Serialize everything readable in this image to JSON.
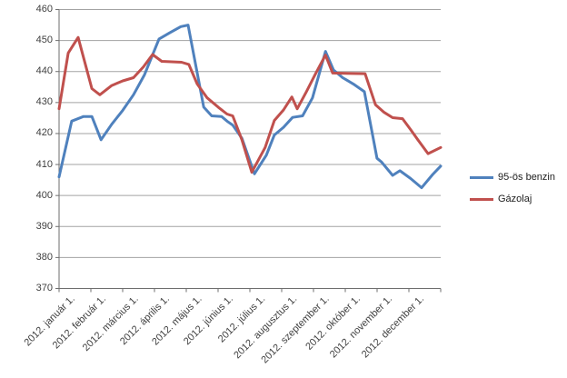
{
  "chart_data": {
    "type": "line",
    "title": "",
    "y_axis": {
      "min": 370,
      "max": 460,
      "step": 10,
      "tick_labels": [
        "370",
        "380",
        "390",
        "400",
        "410",
        "420",
        "430",
        "440",
        "450",
        "460"
      ]
    },
    "x_axis": {
      "tick_labels": [
        "2012. január 1.",
        "2012. február 1.",
        "2012. március 1.",
        "2012. április 1.",
        "2012. május 1.",
        "2012. június 1.",
        "2012. július 1.",
        "2012. augusztus 1.",
        "2012. szeptember 1.",
        "2012. október 1.",
        "2012. november 1.",
        "2012. december 1."
      ]
    },
    "grid": true,
    "legend_position": "right",
    "colors": {
      "gridline": "#a3a3a3",
      "axis": "#6e6e6e",
      "labels": "#404040",
      "background": "#ffffff"
    },
    "series": [
      {
        "name": "95-ös benzin",
        "color": "#4F81BD",
        "points": [
          [
            0.0,
            406
          ],
          [
            0.033,
            424
          ],
          [
            0.064,
            425.5
          ],
          [
            0.086,
            425.5
          ],
          [
            0.11,
            418
          ],
          [
            0.138,
            423
          ],
          [
            0.167,
            427.5
          ],
          [
            0.195,
            432.5
          ],
          [
            0.224,
            439
          ],
          [
            0.262,
            450.5
          ],
          [
            0.29,
            452.5
          ],
          [
            0.319,
            454.5
          ],
          [
            0.338,
            455
          ],
          [
            0.379,
            428.5
          ],
          [
            0.4,
            425.7
          ],
          [
            0.426,
            425.5
          ],
          [
            0.44,
            424
          ],
          [
            0.455,
            422.7
          ],
          [
            0.479,
            418.5
          ],
          [
            0.512,
            407
          ],
          [
            0.543,
            413
          ],
          [
            0.564,
            419.5
          ],
          [
            0.588,
            422
          ],
          [
            0.612,
            425.2
          ],
          [
            0.638,
            425.7
          ],
          [
            0.664,
            431.5
          ],
          [
            0.698,
            446.5
          ],
          [
            0.719,
            440.5
          ],
          [
            0.743,
            438
          ],
          [
            0.771,
            436
          ],
          [
            0.8,
            433.5
          ],
          [
            0.833,
            412
          ],
          [
            0.845,
            410.8
          ],
          [
            0.874,
            406.5
          ],
          [
            0.893,
            408
          ],
          [
            0.921,
            405.5
          ],
          [
            0.95,
            402.5
          ],
          [
            0.979,
            406.8
          ],
          [
            1.0,
            409.5
          ]
        ]
      },
      {
        "name": "Gázolaj",
        "color": "#C0504D",
        "points": [
          [
            0.0,
            428
          ],
          [
            0.024,
            446
          ],
          [
            0.05,
            451
          ],
          [
            0.086,
            434.5
          ],
          [
            0.107,
            432.5
          ],
          [
            0.138,
            435.5
          ],
          [
            0.167,
            437
          ],
          [
            0.195,
            438
          ],
          [
            0.221,
            441.5
          ],
          [
            0.245,
            445.5
          ],
          [
            0.269,
            443.3
          ],
          [
            0.321,
            443
          ],
          [
            0.34,
            442.3
          ],
          [
            0.362,
            436
          ],
          [
            0.388,
            431.5
          ],
          [
            0.417,
            428.5
          ],
          [
            0.44,
            426.3
          ],
          [
            0.455,
            425.7
          ],
          [
            0.479,
            418
          ],
          [
            0.505,
            407.5
          ],
          [
            0.54,
            415.5
          ],
          [
            0.564,
            424.2
          ],
          [
            0.588,
            427.6
          ],
          [
            0.61,
            431.8
          ],
          [
            0.624,
            428
          ],
          [
            0.648,
            433.5
          ],
          [
            0.671,
            439
          ],
          [
            0.698,
            445.3
          ],
          [
            0.717,
            439.5
          ],
          [
            0.802,
            439.3
          ],
          [
            0.829,
            429.3
          ],
          [
            0.852,
            426.8
          ],
          [
            0.874,
            425.1
          ],
          [
            0.9,
            424.8
          ],
          [
            0.921,
            421.3
          ],
          [
            0.94,
            418
          ],
          [
            0.967,
            413.5
          ],
          [
            1.0,
            415.5
          ]
        ]
      }
    ]
  },
  "legend": {
    "items": [
      {
        "label": "95-ös benzin"
      },
      {
        "label": "Gázolaj"
      }
    ]
  }
}
